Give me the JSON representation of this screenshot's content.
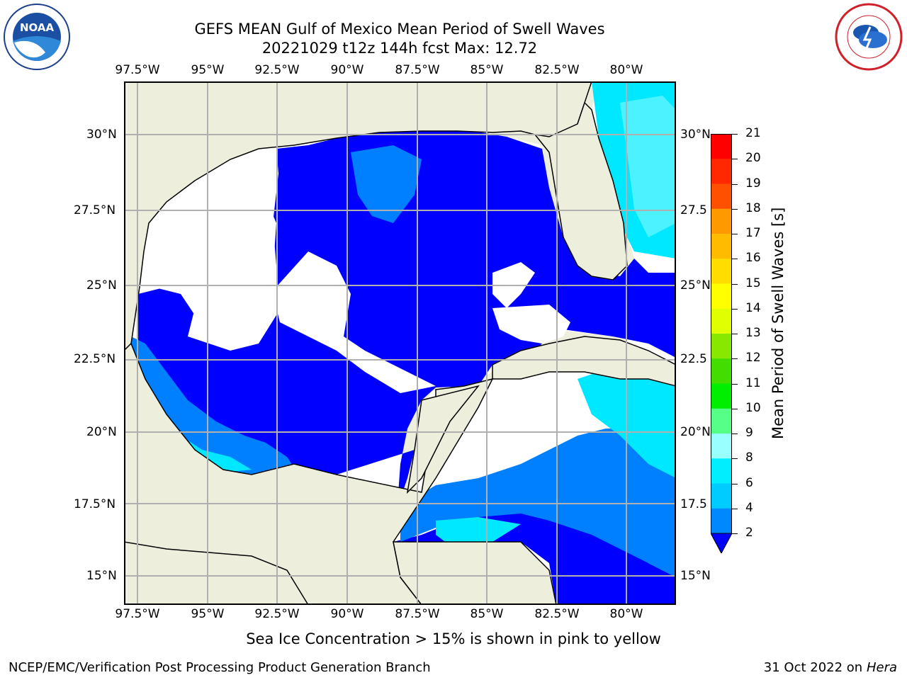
{
  "header": {
    "title_line1": "GEFS MEAN Gulf of Mexico Mean Period of Swell Waves",
    "title_line2": "20221029 t12z 144h fcst   Max: 12.72"
  },
  "map": {
    "lon_labels": [
      "97.5°W",
      "95°W",
      "92.5°W",
      "90°W",
      "87.5°W",
      "85°W",
      "82.5°W",
      "80°W"
    ],
    "lat_labels_left": [
      "30°N",
      "27.5°N",
      "25°N",
      "22.5°N",
      "20°N",
      "17.5°N",
      "15°N"
    ],
    "lat_labels_right": [
      "30°N",
      "27.5",
      "25°N",
      "22.5",
      "20°N",
      "17.5",
      "15°N"
    ],
    "colors": {
      "land": "#eeeedd",
      "grid": "#b0b0b0",
      "blue_2": "#0000ff",
      "blue_4": "#0080ff",
      "cyan_6": "#00e8ff",
      "cyan_8": "#4cf2ff",
      "green_10": "#66ff66",
      "green_12": "#33dd00",
      "lime": "#99ee00"
    }
  },
  "colorbar": {
    "title": "Mean Period of Swell Waves [s]",
    "ticks": [
      "21",
      "20",
      "19",
      "18",
      "17",
      "16",
      "15",
      "14",
      "13",
      "12",
      "11",
      "10",
      "9",
      "8",
      "6",
      "4",
      "2"
    ],
    "colors": [
      "#ff0000",
      "#ff2800",
      "#ff5000",
      "#ff7800",
      "#ff9900",
      "#ffbb00",
      "#ffdd00",
      "#ffff00",
      "#e0ff00",
      "#c0f000",
      "#88e800",
      "#44dd00",
      "#00ee00",
      "#55ff88",
      "#99ffff",
      "#55ffff",
      "#00eeff",
      "#00ccff",
      "#0088ff",
      "#0000ff"
    ]
  },
  "logos": {
    "left": "noa-logo",
    "right": "nws-logo"
  },
  "footer": {
    "note": "Sea Ice Concentration > 15% is shown in pink to yellow",
    "left": "NCEP/EMC/Verification Post Processing Product Generation Branch",
    "right_date": "31 Oct 2022 on ",
    "right_host": "Hera"
  }
}
